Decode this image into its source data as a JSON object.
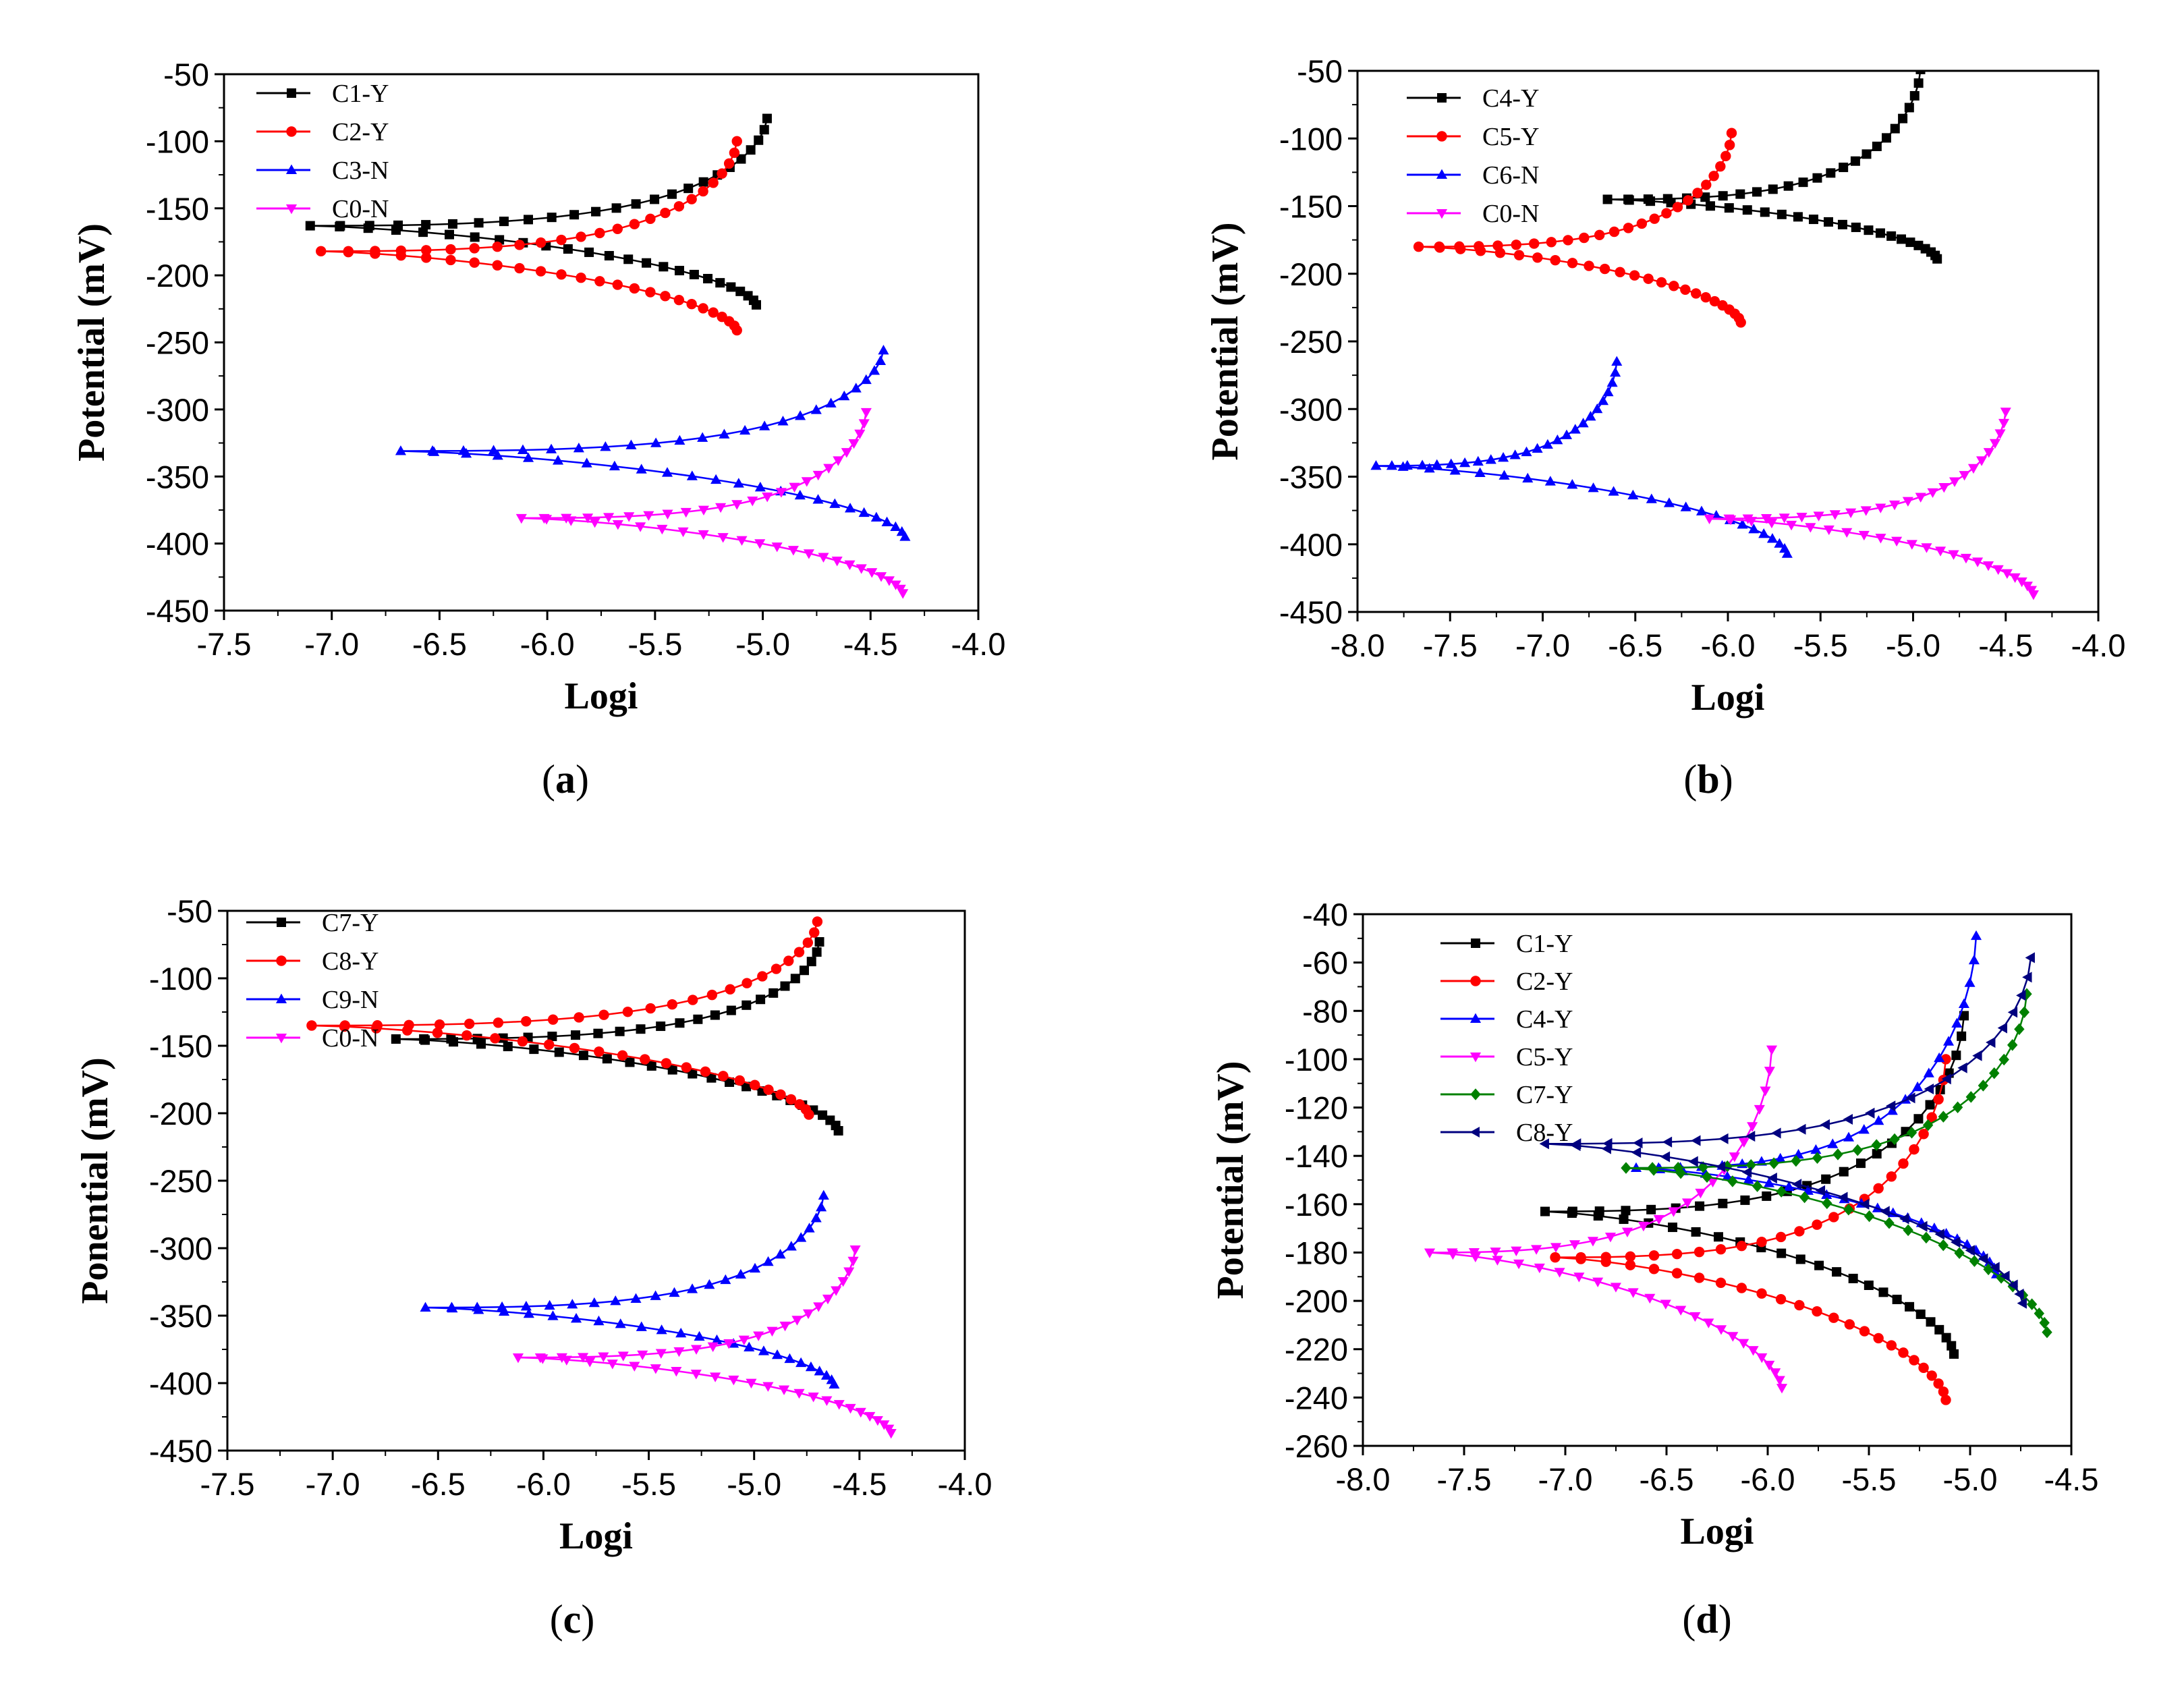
{
  "figure": {
    "captions": [
      "a",
      "b",
      "c",
      "d"
    ]
  },
  "colors": {
    "C1-Y": "#000000",
    "C2-Y": "#ff0000",
    "C3-N": "#0000ff",
    "C0-N": "#ff00ff",
    "C4-Y": "#000000",
    "C5-Y": "#ff0000",
    "C6-N": "#0000ff",
    "C7-Y": "#000000",
    "C8-Y": "#ff0000",
    "C9-N": "#0000ff",
    "d_C1-Y": "#000000",
    "d_C2-Y": "#ff0000",
    "d_C4-Y": "#0000ff",
    "d_C5-Y": "#ff00ff",
    "d_C7-Y": "#008000",
    "d_C8-Y": "#00007f"
  },
  "chart_data": [
    {
      "type": "line",
      "panel": "a",
      "xlabel": "Logi",
      "ylabel": "Potential (mV)",
      "xlim": [
        -7.5,
        -4.0
      ],
      "ylim": [
        -450,
        -50
      ],
      "xticks": [
        "-7.5",
        "-7.0",
        "-6.5",
        "-6.0",
        "-5.5",
        "-5.0",
        "-4.5",
        "-4.0"
      ],
      "yticks": [
        "-50",
        "-100",
        "-150",
        "-200",
        "-250",
        "-300",
        "-350",
        "-400",
        "-450"
      ],
      "legend": "top-left",
      "series": [
        {
          "name": "C1-Y",
          "marker": "square",
          "ecorr": -163,
          "icorr": -7.1,
          "anodic_end": [
            -4.98,
            -83
          ],
          "cathodic_end": [
            -5.03,
            -222
          ]
        },
        {
          "name": "C2-Y",
          "marker": "circle",
          "ecorr": -182,
          "icorr": -7.05,
          "anodic_end": [
            -5.12,
            -100
          ],
          "cathodic_end": [
            -5.12,
            -241
          ]
        },
        {
          "name": "C3-N",
          "marker": "triangle-up",
          "ecorr": -331,
          "icorr": -6.68,
          "anodic_end": [
            -4.44,
            -256
          ],
          "cathodic_end": [
            -4.34,
            -395
          ]
        },
        {
          "name": "C0-N",
          "marker": "triangle-down",
          "ecorr": -381,
          "icorr": -6.12,
          "anodic_end": [
            -4.52,
            -302
          ],
          "cathodic_end": [
            -4.35,
            -437
          ]
        }
      ]
    },
    {
      "type": "line",
      "panel": "b",
      "xlabel": "Logi",
      "ylabel": "Potential (mV)",
      "xlim": [
        -8.0,
        -4.0
      ],
      "ylim": [
        -450,
        -50
      ],
      "xticks": [
        "-8.0",
        "-7.5",
        "-7.0",
        "-6.5",
        "-6.0",
        "-5.5",
        "-5.0",
        "-4.5",
        "-4.0"
      ],
      "yticks": [
        "-50",
        "-100",
        "-150",
        "-200",
        "-250",
        "-300",
        "-350",
        "-400",
        "-450"
      ],
      "legend": "top-left",
      "series": [
        {
          "name": "C4-Y",
          "marker": "square",
          "ecorr": -145,
          "icorr": -6.65,
          "anodic_end": [
            -4.96,
            -49
          ],
          "cathodic_end": [
            -4.87,
            -189
          ]
        },
        {
          "name": "C5-Y",
          "marker": "circle",
          "ecorr": -180,
          "icorr": -7.67,
          "anodic_end": [
            -5.98,
            -96
          ],
          "cathodic_end": [
            -5.93,
            -236
          ]
        },
        {
          "name": "C6-N",
          "marker": "triangle-up",
          "ecorr": -342,
          "icorr": -7.9,
          "anodic_end": [
            -6.6,
            -265
          ],
          "cathodic_end": [
            -5.68,
            -407
          ]
        },
        {
          "name": "C0-N",
          "marker": "triangle-down",
          "ecorr": -381,
          "icorr": -6.1,
          "anodic_end": [
            -4.5,
            -302
          ],
          "cathodic_end": [
            -4.35,
            -437
          ]
        }
      ]
    },
    {
      "type": "line",
      "panel": "c",
      "xlabel": "Logi",
      "ylabel": "Ponential (mV)",
      "xlim": [
        -7.5,
        -4.0
      ],
      "ylim": [
        -450,
        -50
      ],
      "xticks": [
        "-7.5",
        "-7.0",
        "-6.5",
        "-6.0",
        "-5.5",
        "-5.0",
        "-4.5",
        "-4.0"
      ],
      "yticks": [
        "-50",
        "-100",
        "-150",
        "-200",
        "-250",
        "-300",
        "-350",
        "-400",
        "-450"
      ],
      "legend": "top-left",
      "series": [
        {
          "name": "C7-Y",
          "marker": "square",
          "ecorr": -145,
          "icorr": -6.7,
          "anodic_end": [
            -4.69,
            -73
          ],
          "cathodic_end": [
            -4.6,
            -213
          ]
        },
        {
          "name": "C8-Y",
          "marker": "circle",
          "ecorr": -135,
          "icorr": -7.1,
          "anodic_end": [
            -4.7,
            -58
          ],
          "cathodic_end": [
            -4.74,
            -201
          ]
        },
        {
          "name": "C9-N",
          "marker": "triangle-up",
          "ecorr": -344,
          "icorr": -6.56,
          "anodic_end": [
            -4.67,
            -261
          ],
          "cathodic_end": [
            -4.62,
            -401
          ]
        },
        {
          "name": "C0-N",
          "marker": "triangle-down",
          "ecorr": -381,
          "icorr": -6.12,
          "anodic_end": [
            -4.52,
            -301
          ],
          "cathodic_end": [
            -4.35,
            -437
          ]
        }
      ]
    },
    {
      "type": "line",
      "panel": "d",
      "xlabel": "Logi",
      "ylabel": "Potential (mV)",
      "xlim": [
        -8.0,
        -4.5
      ],
      "ylim": [
        -260,
        -40
      ],
      "xticks": [
        "-8.0",
        "-7.5",
        "-7.0",
        "-6.5",
        "-6.0",
        "-5.5",
        "-5.0",
        "-4.5"
      ],
      "yticks": [
        "-40",
        "-60",
        "-80",
        "-100",
        "-120",
        "-140",
        "-160",
        "-180",
        "-200",
        "-220",
        "-240",
        "-260"
      ],
      "legend": "top-left",
      "series": [
        {
          "name": "C1-Y",
          "marker": "square",
          "ecorr": -163,
          "icorr": -7.1,
          "anodic_end": [
            -5.03,
            -82
          ],
          "cathodic_end": [
            -5.08,
            -222
          ]
        },
        {
          "name": "C2-Y",
          "marker": "circle",
          "ecorr": -182,
          "icorr": -7.05,
          "anodic_end": [
            -5.12,
            -100
          ],
          "cathodic_end": [
            -5.12,
            -241
          ]
        },
        {
          "name": "C4-Y",
          "marker": "triangle-up",
          "ecorr": -145,
          "icorr": -6.65,
          "anodic_end": [
            -4.97,
            -49
          ],
          "cathodic_end": [
            -4.87,
            -189
          ]
        },
        {
          "name": "C5-Y",
          "marker": "triangle-down",
          "ecorr": -180,
          "icorr": -7.67,
          "anodic_end": [
            -5.98,
            -96
          ],
          "cathodic_end": [
            -5.93,
            -236
          ]
        },
        {
          "name": "C7-Y",
          "marker": "diamond",
          "ecorr": -145,
          "icorr": -6.7,
          "anodic_end": [
            -4.72,
            -73
          ],
          "cathodic_end": [
            -4.62,
            -213
          ]
        },
        {
          "name": "C8-Y",
          "marker": "triangle-left",
          "ecorr": -135,
          "icorr": -7.1,
          "anodic_end": [
            -4.7,
            -58
          ],
          "cathodic_end": [
            -4.74,
            -201
          ]
        }
      ]
    }
  ]
}
